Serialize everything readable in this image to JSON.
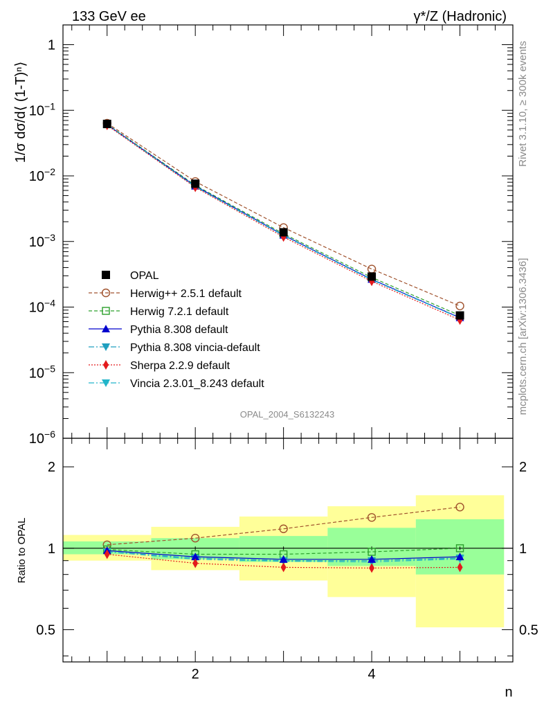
{
  "header": {
    "left_title": "133 GeV ee",
    "right_title": "γ*/Z (Hadronic)",
    "rivet_label": "Rivet 3.1.10, ≥ 300k events",
    "mcplots_label": "mcplots.cern.ch [arXiv:1306.3436]",
    "analysis_label": "OPAL_2004_S6132243"
  },
  "colors": {
    "data": "#000000",
    "herwigpp": "#a0522d",
    "herwig7": "#2ca02c",
    "pythia": "#0000cd",
    "pythia_vincia": "#1e9fbf",
    "sherpa": "#e31a1c",
    "vincia": "#22b5c9",
    "band_inner": "#99ff99",
    "band_outer": "#ffff99"
  },
  "chart_data": [
    {
      "type": "line",
      "panel": "main",
      "xlabel": "n",
      "ylabel": "1/σ dσ/d⟨ (1-T)ⁿ⟩",
      "ylog": true,
      "xlim": [
        0.5,
        5.6
      ],
      "ylim": [
        1e-06,
        2.0
      ],
      "x": [
        1,
        2,
        3,
        4,
        5
      ],
      "y_ticks": [
        {
          "v": 1,
          "base": "1",
          "exp": ""
        },
        {
          "v": 0.1,
          "base": "10",
          "exp": "−1"
        },
        {
          "v": 0.01,
          "base": "10",
          "exp": "−2"
        },
        {
          "v": 0.001,
          "base": "10",
          "exp": "−3"
        },
        {
          "v": 0.0001,
          "base": "10",
          "exp": "−4"
        },
        {
          "v": 1e-05,
          "base": "10",
          "exp": "−5"
        },
        {
          "v": 1e-06,
          "base": "10",
          "exp": "−6"
        }
      ],
      "series": [
        {
          "key": "opal",
          "name": "OPAL",
          "marker": "square-filled",
          "dash": "",
          "values": [
            0.062,
            0.0076,
            0.00138,
            0.000292,
            7.45e-05
          ]
        },
        {
          "key": "herwigpp",
          "name": "Herwig++ 2.5.1 default",
          "marker": "circle-open",
          "dash": "5,3",
          "values": [
            0.0635,
            0.0082,
            0.00163,
            0.00038,
            0.000104
          ]
        },
        {
          "key": "herwig7",
          "name": "Herwig 7.2.1 default",
          "marker": "square-open",
          "dash": "5,3",
          "values": [
            0.0612,
            0.0072,
            0.00131,
            0.000283,
            7.45e-05
          ]
        },
        {
          "key": "pythia",
          "name": "Pythia 8.308 default",
          "marker": "triangle-up",
          "dash": "",
          "values": [
            0.0604,
            0.007,
            0.00125,
            0.000265,
            6.9e-05
          ]
        },
        {
          "key": "pythia_vincia",
          "name": "Pythia 8.308 vincia-default",
          "marker": "triangle-down",
          "dash": "8,3,2,3",
          "values": [
            0.0603,
            0.0069,
            0.00124,
            0.000262,
            6.85e-05
          ]
        },
        {
          "key": "sherpa",
          "name": "Sherpa 2.2.9 default",
          "marker": "diamond",
          "dash": "2,2",
          "values": [
            0.059,
            0.0067,
            0.00117,
            0.000247,
            6.35e-05
          ]
        },
        {
          "key": "vincia",
          "name": "Vincia 2.3.01_8.243 default",
          "marker": "triangle-down",
          "dash": "8,3,2,3",
          "values": [
            0.0602,
            0.0068,
            0.00123,
            0.00026,
            6.8e-05
          ]
        }
      ]
    },
    {
      "type": "line",
      "panel": "ratio",
      "xlabel": "n",
      "ylabel": "Ratio to OPAL",
      "ylog": true,
      "xlim": [
        0.5,
        5.6
      ],
      "ylim": [
        0.38,
        2.55
      ],
      "x_ticks": [
        2,
        4
      ],
      "y_ticks": [
        0.5,
        1,
        2
      ],
      "bands": [
        {
          "x_low": 0.5,
          "x_high": 1.5,
          "inner": [
            0.95,
            1.06
          ],
          "outer": [
            0.9,
            1.12
          ]
        },
        {
          "x_low": 1.5,
          "x_high": 2.5,
          "inner": [
            0.91,
            1.09
          ],
          "outer": [
            0.83,
            1.2
          ]
        },
        {
          "x_low": 2.5,
          "x_high": 3.5,
          "inner": [
            0.89,
            1.11
          ],
          "outer": [
            0.76,
            1.31
          ]
        },
        {
          "x_low": 3.5,
          "x_high": 4.5,
          "inner": [
            0.86,
            1.19
          ],
          "outer": [
            0.66,
            1.43
          ]
        },
        {
          "x_low": 4.5,
          "x_high": 5.5,
          "inner": [
            0.8,
            1.28
          ],
          "outer": [
            0.51,
            1.57
          ]
        }
      ],
      "series": [
        {
          "key": "herwigpp",
          "name": "Herwig++ 2.5.1 default",
          "values": [
            1.03,
            1.09,
            1.18,
            1.3,
            1.42
          ]
        },
        {
          "key": "herwig7",
          "name": "Herwig 7.2.1 default",
          "values": [
            0.99,
            0.95,
            0.95,
            0.97,
            1.0
          ]
        },
        {
          "key": "pythia",
          "name": "Pythia 8.308 default",
          "values": [
            0.98,
            0.93,
            0.91,
            0.91,
            0.93
          ]
        },
        {
          "key": "pythia_vincia",
          "name": "Pythia 8.308 vincia-default",
          "values": [
            0.97,
            0.92,
            0.9,
            0.9,
            0.92
          ]
        },
        {
          "key": "sherpa",
          "name": "Sherpa 2.2.9 default",
          "values": [
            0.95,
            0.88,
            0.85,
            0.845,
            0.85
          ]
        },
        {
          "key": "vincia",
          "name": "Vincia 2.3.01_8.243 default",
          "values": [
            0.97,
            0.91,
            0.895,
            0.89,
            0.913
          ]
        }
      ]
    }
  ]
}
